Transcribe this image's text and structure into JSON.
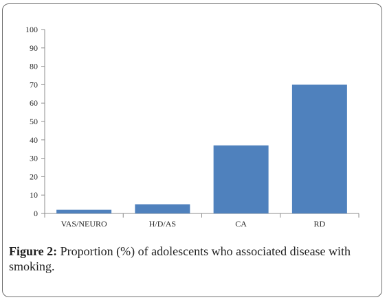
{
  "figure": {
    "caption_label": "Figure 2:",
    "caption_text": " Proportion (%) of adolescents who associated disease with smoking."
  },
  "chart_data": {
    "type": "bar",
    "categories": [
      "VAS/NEURO",
      "H/D/AS",
      "CA",
      "RD"
    ],
    "values": [
      2,
      5,
      37,
      70
    ],
    "title": "",
    "xlabel": "",
    "ylabel": "",
    "ylim": [
      0,
      100
    ],
    "yticks": [
      0,
      10,
      20,
      30,
      40,
      50,
      60,
      70,
      80,
      90,
      100
    ],
    "grid": false,
    "bar_color": "#4f81bd",
    "axis_color": "#8c8c8c"
  }
}
